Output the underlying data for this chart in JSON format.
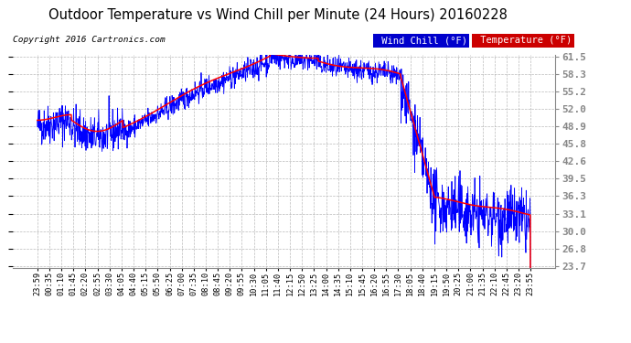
{
  "title": "Outdoor Temperature vs Wind Chill per Minute (24 Hours) 20160228",
  "copyright": "Copyright 2016 Cartronics.com",
  "yticks": [
    23.7,
    26.8,
    30.0,
    33.1,
    36.3,
    39.5,
    42.6,
    45.8,
    48.9,
    52.0,
    55.2,
    58.3,
    61.5
  ],
  "xtick_labels": [
    "23:59",
    "00:35",
    "01:10",
    "01:45",
    "02:20",
    "02:55",
    "03:30",
    "04:05",
    "04:40",
    "05:15",
    "05:50",
    "06:25",
    "07:00",
    "07:35",
    "08:10",
    "08:45",
    "09:20",
    "09:55",
    "10:30",
    "11:05",
    "11:40",
    "12:15",
    "12:50",
    "13:25",
    "14:00",
    "14:35",
    "15:10",
    "15:45",
    "16:20",
    "16:55",
    "17:30",
    "18:05",
    "18:40",
    "19:15",
    "19:50",
    "20:25",
    "21:00",
    "21:35",
    "22:10",
    "22:45",
    "23:20",
    "23:55"
  ],
  "temp_color": "#ff0000",
  "wind_color": "#0000ff",
  "legend_wind_bg": "#0000cc",
  "legend_temp_bg": "#cc0000",
  "plot_bg": "#ffffff",
  "grid_color": "#aaaaaa",
  "title_color": "#000000",
  "fig_bg": "#ffffff",
  "ymin": 23.7,
  "ymax": 61.5
}
